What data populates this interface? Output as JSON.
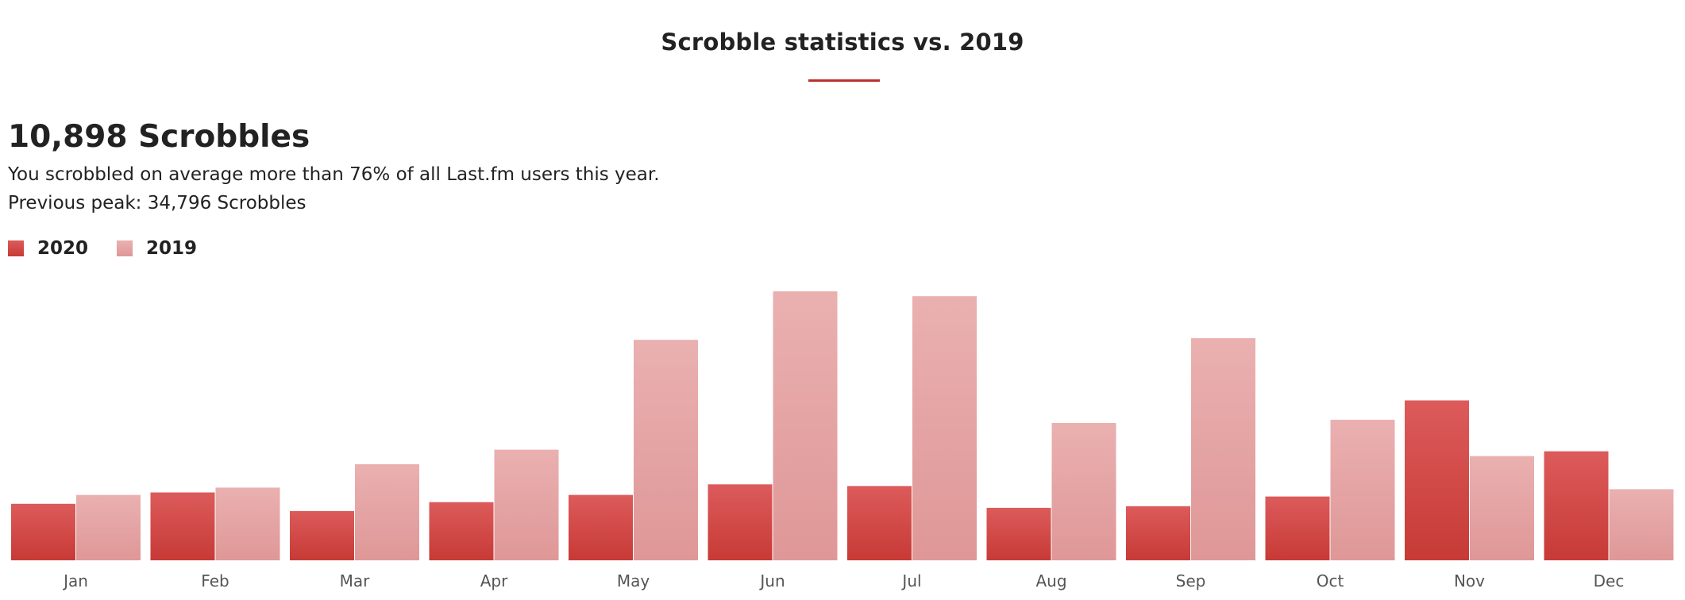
{
  "header": {
    "title": "Scrobble statistics vs. 2019"
  },
  "summary": {
    "headline": "10,898 Scrobbles",
    "description": "You scrobbled on average more than 76% of all Last.fm users this year.",
    "previous_peak": "Previous peak: 34,796 Scrobbles"
  },
  "colors": {
    "accent": "#b9312e",
    "series_2020_top": "#dc5b5b",
    "series_2020_bottom": "#c73a36",
    "series_2019_top": "#eab0b0",
    "series_2019_bottom": "#df9797"
  },
  "chart_data": {
    "type": "bar",
    "title": "",
    "xlabel": "",
    "ylabel": "",
    "grid": false,
    "legend_position": "top-left",
    "categories": [
      "Jan",
      "Feb",
      "Mar",
      "Apr",
      "May",
      "Jun",
      "Jul",
      "Aug",
      "Sep",
      "Oct",
      "Nov",
      "Dec"
    ],
    "ylim": [
      0,
      340
    ],
    "series": [
      {
        "name": "2020",
        "color": "#d44a47",
        "values": [
          70,
          84,
          61,
          72,
          81,
          94,
          92,
          65,
          67,
          79,
          198,
          135
        ]
      },
      {
        "name": "2019",
        "color": "#e6a4a4",
        "values": [
          81,
          90,
          119,
          137,
          273,
          333,
          327,
          170,
          275,
          174,
          129,
          88
        ]
      }
    ]
  }
}
